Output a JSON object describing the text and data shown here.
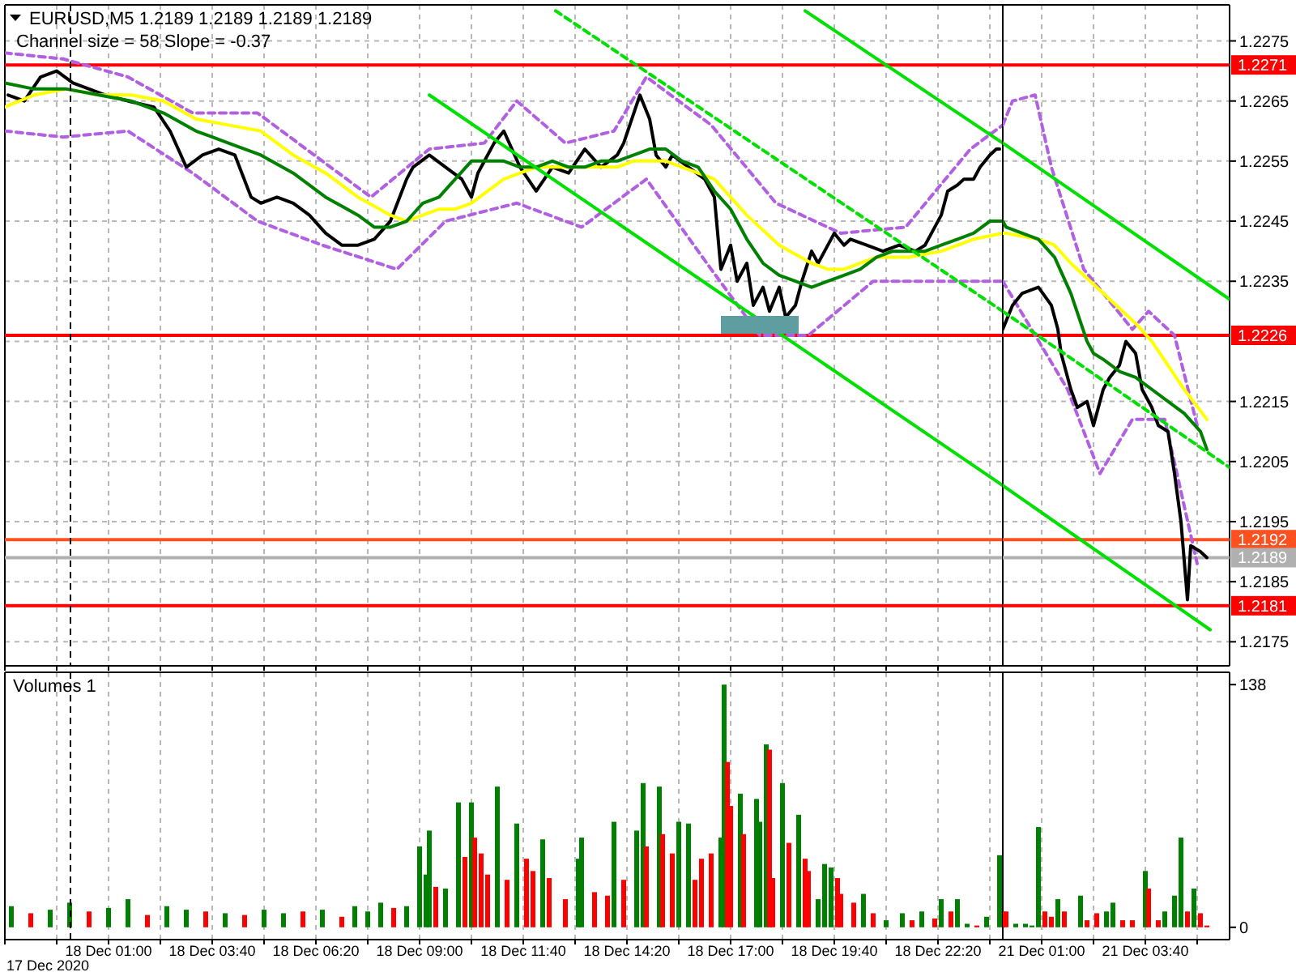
{
  "chart_data": [
    {
      "type": "line",
      "title": "EURUSD,M5 1.2189 1.2189 1.2189 1.2189",
      "subtitle": "Channel size = 58 Slope = -0.37",
      "xlim": [
        "2020-12-17T22:20",
        "2020-12-19T00:00"
      ],
      "xticks": [
        {
          "value": "2020-12-17T22:20",
          "label": null
        },
        {
          "value": "2020-12-17T23:40",
          "label": null
        },
        {
          "value": "2020-12-18T01:00",
          "label": null
        },
        {
          "value": "2020-12-18T02:20",
          "label": null
        },
        {
          "value": "2020-12-18T03:40",
          "label": null
        },
        {
          "value": "2020-12-18T05:00",
          "label": null
        },
        {
          "value": "2020-12-18T06:20",
          "label": null
        },
        {
          "value": "2020-12-18T07:40",
          "label": null
        },
        {
          "value": "2020-12-18T09:00",
          "label": null
        },
        {
          "value": "2020-12-18T10:20",
          "label": null
        },
        {
          "value": "2020-12-18T11:40",
          "label": null
        },
        {
          "value": "2020-12-18T13:00",
          "label": null
        },
        {
          "value": "2020-12-18T14:20",
          "label": null
        },
        {
          "value": "2020-12-18T15:40",
          "label": null
        },
        {
          "value": "2020-12-18T17:00",
          "label": null
        },
        {
          "value": "2020-12-18T18:20",
          "label": null
        },
        {
          "value": "2020-12-18T19:40",
          "label": null
        },
        {
          "value": "2020-12-18T21:00",
          "label": null
        },
        {
          "value": "2020-12-18T22:20",
          "label": null
        },
        {
          "value": "2020-12-18T23:40",
          "label": null
        }
      ],
      "ylim": [
        1.2171,
        1.2281
      ],
      "yticks": [
        {
          "value": 1.2175,
          "label": null
        },
        {
          "value": 1.2185,
          "label": null
        },
        {
          "value": 1.2195,
          "label": null
        },
        {
          "value": 1.2205,
          "label": null
        },
        {
          "value": 1.2215,
          "label": null
        },
        {
          "value": 1.2225,
          "label": null
        },
        {
          "value": 1.2235,
          "label": null
        },
        {
          "value": 1.2245,
          "label": null
        },
        {
          "value": 1.2255,
          "label": null
        },
        {
          "value": 1.2265,
          "label": null
        },
        {
          "value": 1.2275,
          "label": null
        }
      ],
      "grid": true,
      "tick_labels": false,
      "series": [
        {
          "color": "#b060e0",
          "line_style": "dashed",
          "x": [
            "2020-12-17T22:20",
            "2020-12-17T23:50",
            "2020-12-18T01:30",
            "2020-12-18T03:10",
            "2020-12-18T04:50",
            "2020-12-18T06:05",
            "2020-12-18T07:45",
            "2020-12-18T09:15",
            "2020-12-18T10:40",
            "2020-12-18T11:30",
            "2020-12-18T12:45",
            "2020-12-18T14:00",
            "2020-12-18T14:50",
            "2020-12-18T16:30",
            "2020-12-18T18:10",
            "2020-12-18T19:50",
            "2020-12-18T21:30",
            "2020-12-18T23:10",
            "2020-12-19T00:00"
          ],
          "values": [
            1.2273,
            1.2272,
            1.2269,
            1.2263,
            1.2263,
            1.2257,
            1.2249,
            1.2257,
            1.2258,
            1.2265,
            1.2258,
            1.226,
            1.2269,
            1.2261,
            1.2248,
            1.2243,
            1.2244,
            1.2257,
            1.2261
          ]
        },
        {
          "color": "#b060e0",
          "line_style": "dashed",
          "x": [
            "2020-12-17T22:20",
            "2020-12-17T23:50",
            "2020-12-18T01:30",
            "2020-12-18T03:10",
            "2020-12-18T04:50",
            "2020-12-18T06:30",
            "2020-12-18T08:25",
            "2020-12-18T09:40",
            "2020-12-18T11:30",
            "2020-12-18T13:10",
            "2020-12-18T14:50",
            "2020-12-18T16:30",
            "2020-12-18T17:45",
            "2020-12-18T19:00",
            "2020-12-18T20:40",
            "2020-12-18T22:20",
            "2020-12-19T00:00"
          ],
          "values": [
            1.226,
            1.2259,
            1.226,
            1.2253,
            1.2245,
            1.2241,
            1.2237,
            1.2245,
            1.2248,
            1.2244,
            1.2252,
            1.2237,
            1.2226,
            1.2226,
            1.2235,
            1.2235,
            1.2235
          ]
        },
        {
          "color": "#000000",
          "x": [
            "2020-12-17T22:25",
            "2020-12-17T22:50",
            "2020-12-17T23:15",
            "2020-12-17T23:40",
            "2020-12-18T00:05",
            "2020-12-18T00:30",
            "2020-12-18T00:55",
            "2020-12-18T01:30",
            "2020-12-18T02:10",
            "2020-12-18T02:35",
            "2020-12-18T03:00",
            "2020-12-18T03:25",
            "2020-12-18T03:50",
            "2020-12-18T04:15",
            "2020-12-18T04:40",
            "2020-12-18T04:55",
            "2020-12-18T05:20",
            "2020-12-18T05:45",
            "2020-12-18T06:10",
            "2020-12-18T06:35",
            "2020-12-18T07:00",
            "2020-12-18T07:25",
            "2020-12-18T07:50",
            "2020-12-18T08:15",
            "2020-12-18T08:40",
            "2020-12-18T08:50",
            "2020-12-18T09:15",
            "2020-12-18T09:40",
            "2020-12-18T10:05",
            "2020-12-18T10:20",
            "2020-12-18T10:30",
            "2020-12-18T10:55",
            "2020-12-18T11:10",
            "2020-12-18T11:35",
            "2020-12-18T12:00",
            "2020-12-18T12:25",
            "2020-12-18T12:50",
            "2020-12-18T13:15",
            "2020-12-18T13:40",
            "2020-12-18T14:05",
            "2020-12-18T14:15",
            "2020-12-18T14:40",
            "2020-12-18T14:55",
            "2020-12-18T15:05",
            "2020-12-18T15:20",
            "2020-12-18T15:30",
            "2020-12-18T15:55",
            "2020-12-18T16:20",
            "2020-12-18T16:35",
            "2020-12-18T16:45",
            "2020-12-18T17:00",
            "2020-12-18T17:10",
            "2020-12-18T17:25",
            "2020-12-18T17:35",
            "2020-12-18T17:50",
            "2020-12-18T18:00",
            "2020-12-18T18:15",
            "2020-12-18T18:25",
            "2020-12-18T18:40",
            "2020-12-18T18:50",
            "2020-12-18T19:05",
            "2020-12-18T19:15",
            "2020-12-18T19:40",
            "2020-12-18T19:55",
            "2020-12-18T20:05",
            "2020-12-18T20:30",
            "2020-12-18T20:55",
            "2020-12-18T21:20",
            "2020-12-18T21:45",
            "2020-12-18T22:00",
            "2020-12-18T22:10",
            "2020-12-18T22:25",
            "2020-12-18T22:35",
            "2020-12-18T22:50",
            "2020-12-18T23:00",
            "2020-12-18T23:15",
            "2020-12-18T23:25",
            "2020-12-18T23:40",
            "2020-12-18T23:50",
            "2020-12-18T23:55"
          ],
          "values": [
            1.2266,
            1.2265,
            1.2269,
            1.227,
            1.2268,
            1.2267,
            1.2266,
            1.2265,
            1.2264,
            1.226,
            1.2254,
            1.2256,
            1.2257,
            1.2256,
            1.2249,
            1.2248,
            1.2249,
            1.2248,
            1.2246,
            1.2243,
            1.2241,
            1.2241,
            1.2242,
            1.2245,
            1.2252,
            1.2254,
            1.2256,
            1.2254,
            1.2252,
            1.2249,
            1.2253,
            1.2258,
            1.226,
            1.2254,
            1.225,
            1.2254,
            1.2253,
            1.2257,
            1.2254,
            1.2256,
            1.2258,
            1.2266,
            1.2262,
            1.2256,
            1.2254,
            1.2256,
            1.2254,
            1.2252,
            1.2249,
            1.2237,
            1.2241,
            1.2235,
            1.2238,
            1.2231,
            1.2234,
            1.223,
            1.2234,
            1.2229,
            1.2231,
            1.2235,
            1.224,
            1.2238,
            1.2243,
            1.2241,
            1.2242,
            1.2241,
            1.224,
            1.2241,
            1.224,
            1.2241,
            1.2243,
            1.2246,
            1.225,
            1.2251,
            1.2252,
            1.2252,
            1.2254,
            1.2256,
            1.2257,
            1.2257
          ]
        },
        {
          "color": "#ffff00",
          "x": [
            "2020-12-17T22:20",
            "2020-12-17T23:05",
            "2020-12-17T23:55",
            "2020-12-18T00:45",
            "2020-12-18T01:35",
            "2020-12-18T02:25",
            "2020-12-18T03:15",
            "2020-12-18T04:05",
            "2020-12-18T04:55",
            "2020-12-18T05:45",
            "2020-12-18T06:35",
            "2020-12-18T07:25",
            "2020-12-18T08:15",
            "2020-12-18T08:40",
            "2020-12-18T09:05",
            "2020-12-18T09:30",
            "2020-12-18T09:55",
            "2020-12-18T10:20",
            "2020-12-18T10:45",
            "2020-12-18T11:10",
            "2020-12-18T11:35",
            "2020-12-18T12:00",
            "2020-12-18T12:25",
            "2020-12-18T13:15",
            "2020-12-18T14:05",
            "2020-12-18T14:30",
            "2020-12-18T14:55",
            "2020-12-18T15:20",
            "2020-12-18T15:45",
            "2020-12-18T16:35",
            "2020-12-18T17:25",
            "2020-12-18T18:15",
            "2020-12-18T19:05",
            "2020-12-18T19:30",
            "2020-12-18T19:55",
            "2020-12-18T20:20",
            "2020-12-18T20:45",
            "2020-12-18T21:35",
            "2020-12-18T22:25",
            "2020-12-18T23:15",
            "2020-12-19T00:00"
          ],
          "values": [
            1.2264,
            1.2266,
            1.2267,
            1.2266,
            1.2266,
            1.2265,
            1.2262,
            1.2261,
            1.226,
            1.2256,
            1.2253,
            1.2249,
            1.2246,
            1.2245,
            1.2246,
            1.2247,
            1.2247,
            1.2248,
            1.225,
            1.2252,
            1.2253,
            1.2254,
            1.2254,
            1.2254,
            1.2254,
            1.2255,
            1.2255,
            1.2255,
            1.2254,
            1.2252,
            1.2246,
            1.2241,
            1.2238,
            1.2237,
            1.2237,
            1.2238,
            1.2239,
            1.2239,
            1.224,
            1.2242,
            1.2243
          ]
        },
        {
          "color": "#008000",
          "x": [
            "2020-12-17T22:20",
            "2020-12-17T23:05",
            "2020-12-17T23:55",
            "2020-12-18T00:45",
            "2020-12-18T01:35",
            "2020-12-18T02:25",
            "2020-12-18T03:15",
            "2020-12-18T04:05",
            "2020-12-18T04:55",
            "2020-12-18T05:45",
            "2020-12-18T06:35",
            "2020-12-18T07:25",
            "2020-12-18T07:50",
            "2020-12-18T08:15",
            "2020-12-18T08:40",
            "2020-12-18T09:05",
            "2020-12-18T09:30",
            "2020-12-18T09:55",
            "2020-12-18T10:20",
            "2020-12-18T10:45",
            "2020-12-18T11:10",
            "2020-12-18T11:35",
            "2020-12-18T12:00",
            "2020-12-18T12:25",
            "2020-12-18T12:50",
            "2020-12-18T13:15",
            "2020-12-18T13:40",
            "2020-12-18T14:05",
            "2020-12-18T14:55",
            "2020-12-18T15:20",
            "2020-12-18T15:45",
            "2020-12-18T16:10",
            "2020-12-18T16:35",
            "2020-12-18T17:00",
            "2020-12-18T17:25",
            "2020-12-18T17:50",
            "2020-12-18T18:15",
            "2020-12-18T18:40",
            "2020-12-18T19:05",
            "2020-12-18T19:30",
            "2020-12-18T19:55",
            "2020-12-18T20:20",
            "2020-12-18T20:45",
            "2020-12-18T21:10",
            "2020-12-18T21:35",
            "2020-12-18T22:00",
            "2020-12-18T22:25",
            "2020-12-18T22:50",
            "2020-12-18T23:15",
            "2020-12-18T23:40",
            "2020-12-18T23:50",
            "2020-12-19T00:00"
          ],
          "values": [
            1.2268,
            1.2267,
            1.2267,
            1.2266,
            1.2265,
            1.2263,
            1.226,
            1.2258,
            1.2256,
            1.2253,
            1.2249,
            1.2246,
            1.2244,
            1.2244,
            1.2245,
            1.2248,
            1.2249,
            1.2252,
            1.2255,
            1.2255,
            1.2255,
            1.2254,
            1.2254,
            1.2255,
            1.2254,
            1.2254,
            1.2255,
            1.2255,
            1.2257,
            1.2257,
            1.2255,
            1.2254,
            1.225,
            1.2247,
            1.2242,
            1.2238,
            1.2236,
            1.2235,
            1.2234,
            1.2235,
            1.2236,
            1.2237,
            1.2239,
            1.224,
            1.224,
            1.224,
            1.2241,
            1.2242,
            1.2243,
            1.2245,
            1.2245,
            1.2245
          ]
        },
        {
          "color": "#00e000",
          "x": [
            "2020-12-18T18:55",
            "2020-12-19T00:00"
          ],
          "values": [
            1.228,
            1.2258
          ]
        },
        {
          "color": "#00e000",
          "line_style": "dashed",
          "x": [
            "2020-12-18T12:30",
            "2020-12-19T00:00"
          ],
          "values": [
            1.228,
            1.223
          ]
        },
        {
          "color": "#00e000",
          "x": [
            "2020-12-18T09:15",
            "2020-12-19T00:00"
          ],
          "values": [
            1.2266,
            1.2201
          ]
        }
      ],
      "ref_lines": [
        {
          "axis": "y",
          "value": 1.2271,
          "color": "#ff0000"
        },
        {
          "axis": "y",
          "value": 1.2226,
          "color": "#ff0000"
        },
        {
          "axis": "y",
          "value": 1.2181,
          "color": "#ff0000"
        },
        {
          "axis": "y",
          "value": 1.2192,
          "color": "#ff5020"
        },
        {
          "axis": "y",
          "value": 1.2189,
          "color": "#b0b0b0"
        },
        {
          "axis": "x",
          "value": "2020-12-18T00:00",
          "color": "#000000",
          "line_style": "dashed"
        }
      ]
    },
    {
      "type": "line",
      "xlim": [
        "2020-12-21T00:00",
        "2020-12-21T05:50"
      ],
      "xticks": [
        {
          "value": "2020-12-21T01:00",
          "label": null
        },
        {
          "value": "2020-12-21T02:20",
          "label": null
        },
        {
          "value": "2020-12-21T03:40",
          "label": null
        },
        {
          "value": "2020-12-21T05:00",
          "label": null
        }
      ],
      "ylim": [
        1.2171,
        1.2281
      ],
      "yticks": [
        1.2175,
        1.2185,
        1.2195,
        1.2205,
        1.2215,
        1.2235,
        1.2245,
        1.2255,
        1.2265,
        1.2275
      ],
      "grid": true,
      "tick_labels": "y",
      "series": [
        {
          "color": "#b060e0",
          "line_style": "dashed",
          "x": [
            "2020-12-21T00:00",
            "2020-12-21T00:15",
            "2020-12-21T00:50",
            "2020-12-21T01:15",
            "2020-12-21T02:05",
            "2020-12-21T03:20",
            "2020-12-21T03:45",
            "2020-12-21T04:25",
            "2020-12-21T05:00"
          ],
          "values": [
            1.2261,
            1.2265,
            1.2266,
            1.2254,
            1.2237,
            1.2227,
            1.223,
            1.2226,
            1.2211
          ]
        },
        {
          "color": "#b060e0",
          "line_style": "dashed",
          "x": [
            "2020-12-21T00:00",
            "2020-12-21T01:40",
            "2020-12-21T02:30",
            "2020-12-21T03:20",
            "2020-12-21T04:10",
            "2020-12-21T05:00"
          ],
          "values": [
            1.2235,
            1.2217,
            1.2203,
            1.2212,
            1.2212,
            1.2188
          ]
        },
        {
          "color": "#000000",
          "x": [
            "2020-12-21T00:00",
            "2020-12-21T00:15",
            "2020-12-21T00:30",
            "2020-12-21T00:55",
            "2020-12-21T01:15",
            "2020-12-21T01:25",
            "2020-12-21T01:30",
            "2020-12-21T01:45",
            "2020-12-21T01:55",
            "2020-12-21T02:10",
            "2020-12-21T02:20",
            "2020-12-21T02:35",
            "2020-12-21T02:45",
            "2020-12-21T03:00",
            "2020-12-21T03:10",
            "2020-12-21T03:25",
            "2020-12-21T03:35",
            "2020-12-21T03:50",
            "2020-12-21T04:00",
            "2020-12-21T04:15",
            "2020-12-21T04:25",
            "2020-12-21T04:35",
            "2020-12-21T04:45",
            "2020-12-21T04:50",
            "2020-12-21T05:05",
            "2020-12-21T05:15"
          ],
          "values": [
            1.2227,
            1.2231,
            1.2233,
            1.2234,
            1.2231,
            1.2227,
            1.2223,
            1.2217,
            1.2214,
            1.2215,
            1.2211,
            1.2217,
            1.2219,
            1.2221,
            1.2225,
            1.2223,
            1.2217,
            1.2214,
            1.2211,
            1.221,
            1.2203,
            1.2195,
            1.2182,
            1.2191,
            1.219,
            1.2189
          ]
        },
        {
          "color": "#ffff00",
          "x": [
            "2020-12-21T00:00",
            "2020-12-21T00:05",
            "2020-12-21T00:55",
            "2020-12-21T01:20",
            "2020-12-21T01:45",
            "2020-12-21T02:35",
            "2020-12-21T03:25",
            "2020-12-21T03:50",
            "2020-12-21T04:15",
            "2020-12-21T04:40",
            "2020-12-21T05:15"
          ],
          "values": [
            1.2243,
            1.2243,
            1.2242,
            1.2241,
            1.2238,
            1.2233,
            1.2228,
            1.2225,
            1.2221,
            1.2217,
            1.2212
          ]
        },
        {
          "color": "#008000",
          "x": [
            "2020-12-21T00:00",
            "2020-12-21T00:05",
            "2020-12-21T00:30",
            "2020-12-21T00:55",
            "2020-12-21T01:20",
            "2020-12-21T01:45",
            "2020-12-21T02:10",
            "2020-12-21T02:20",
            "2020-12-21T02:35",
            "2020-12-21T03:00",
            "2020-12-21T03:25",
            "2020-12-21T03:50",
            "2020-12-21T04:15",
            "2020-12-21T04:40",
            "2020-12-21T05:05",
            "2020-12-21T05:15"
          ],
          "values": [
            1.2245,
            1.2244,
            1.2243,
            1.2242,
            1.2239,
            1.2233,
            1.2225,
            1.2223,
            1.2222,
            1.222,
            1.2219,
            1.2217,
            1.2215,
            1.2213,
            1.221,
            1.2207
          ]
        },
        {
          "color": "#00e000",
          "x": [
            "2020-12-21T00:00",
            "2020-12-21T05:50"
          ],
          "values": [
            1.2258,
            1.2232
          ]
        },
        {
          "color": "#00e000",
          "line_style": "dashed",
          "x": [
            "2020-12-21T00:00",
            "2020-12-21T05:50"
          ],
          "values": [
            1.223,
            1.2204
          ]
        },
        {
          "color": "#00e000",
          "x": [
            "2020-12-21T00:00",
            "2020-12-21T05:20"
          ],
          "values": [
            1.2201,
            1.2177
          ]
        }
      ],
      "ref_lines": [
        {
          "axis": "y",
          "value": 1.2271,
          "label": "1.2271",
          "color": "#ff0000"
        },
        {
          "axis": "y",
          "value": 1.2226,
          "label": "1.2226",
          "color": "#ff0000"
        },
        {
          "axis": "y",
          "value": 1.2181,
          "label": "1.2181",
          "color": "#ff0000"
        },
        {
          "axis": "y",
          "value": 1.2192,
          "label": "1.2192",
          "color": "#ff5020"
        },
        {
          "axis": "y",
          "value": 1.2189,
          "label": "1.2189",
          "color": "#b0b0b0"
        }
      ]
    },
    {
      "type": "bar",
      "title": "Volumes 1",
      "xlim": [
        "2020-12-17T22:20",
        "2020-12-19T00:00"
      ],
      "annotations": [
        "17 Dec 2020"
      ],
      "xticks": [
        {
          "value": "2020-12-17T22:20",
          "label": null
        },
        {
          "value": "2020-12-17T23:40",
          "label": null
        },
        {
          "value": "2020-12-18T01:00",
          "label": "18 Dec 01:00"
        },
        {
          "value": "2020-12-18T02:20",
          "label": null
        },
        {
          "value": "2020-12-18T03:40",
          "label": "18 Dec 03:40"
        },
        {
          "value": "2020-12-18T05:00",
          "label": null
        },
        {
          "value": "2020-12-18T06:20",
          "label": "18 Dec 06:20"
        },
        {
          "value": "2020-12-18T07:40",
          "label": null
        },
        {
          "value": "2020-12-18T09:00",
          "label": "18 Dec 09:00"
        },
        {
          "value": "2020-12-18T10:20",
          "label": null
        },
        {
          "value": "2020-12-18T11:40",
          "label": "18 Dec 11:40"
        },
        {
          "value": "2020-12-18T13:00",
          "label": null
        },
        {
          "value": "2020-12-18T14:20",
          "label": "18 Dec 14:20"
        },
        {
          "value": "2020-12-18T15:40",
          "label": null
        },
        {
          "value": "2020-12-18T17:00",
          "label": "18 Dec 17:00"
        },
        {
          "value": "2020-12-18T18:20",
          "label": null
        },
        {
          "value": "2020-12-18T19:40",
          "label": "18 Dec 19:40"
        },
        {
          "value": "2020-12-18T21:00",
          "label": null
        },
        {
          "value": "2020-12-18T22:20",
          "label": "18 Dec 22:20"
        },
        {
          "value": "2020-12-18T23:40",
          "label": null
        }
      ],
      "ylim": [
        -7,
        145
      ],
      "grid": "x",
      "tick_labels": "x",
      "x": [
        "2020-12-17T22:30",
        "2020-12-17T23:00",
        "2020-12-17T23:30",
        "2020-12-18T00:00",
        "2020-12-18T00:30",
        "2020-12-18T01:00",
        "2020-12-18T01:30",
        "2020-12-18T02:00",
        "2020-12-18T02:30",
        "2020-12-18T03:00",
        "2020-12-18T03:30",
        "2020-12-18T04:00",
        "2020-12-18T04:30",
        "2020-12-18T05:00",
        "2020-12-18T05:30",
        "2020-12-18T06:00",
        "2020-12-18T06:30",
        "2020-12-18T07:00",
        "2020-12-18T07:20",
        "2020-12-18T07:40",
        "2020-12-18T08:00",
        "2020-12-18T08:20",
        "2020-12-18T08:40",
        "2020-12-18T09:00",
        "2020-12-18T09:10",
        "2020-12-18T09:15",
        "2020-12-18T09:25",
        "2020-12-18T09:40",
        "2020-12-18T10:00",
        "2020-12-18T10:10",
        "2020-12-18T10:20",
        "2020-12-18T10:25",
        "2020-12-18T10:35",
        "2020-12-18T10:45",
        "2020-12-18T11:00",
        "2020-12-18T11:15",
        "2020-12-18T11:30",
        "2020-12-18T11:45",
        "2020-12-18T11:55",
        "2020-12-18T12:10",
        "2020-12-18T12:20",
        "2020-12-18T12:45",
        "2020-12-18T13:05",
        "2020-12-18T13:10",
        "2020-12-18T13:30",
        "2020-12-18T13:50",
        "2020-12-18T14:00",
        "2020-12-18T14:15",
        "2020-12-18T14:35",
        "2020-12-18T14:45",
        "2020-12-18T14:50",
        "2020-12-18T15:10",
        "2020-12-18T15:15",
        "2020-12-18T15:30",
        "2020-12-18T15:40",
        "2020-12-18T15:55",
        "2020-12-18T16:05",
        "2020-12-18T16:15",
        "2020-12-18T16:30",
        "2020-12-18T16:45",
        "2020-12-18T16:50",
        "2020-12-18T16:55",
        "2020-12-18T17:00",
        "2020-12-18T17:15",
        "2020-12-18T17:20",
        "2020-12-18T17:40",
        "2020-12-18T17:45",
        "2020-12-18T17:55",
        "2020-12-18T18:00",
        "2020-12-18T18:05",
        "2020-12-18T18:20",
        "2020-12-18T18:30",
        "2020-12-18T18:45",
        "2020-12-18T18:55",
        "2020-12-18T19:00",
        "2020-12-18T19:15",
        "2020-12-18T19:25",
        "2020-12-18T19:35",
        "2020-12-18T19:45",
        "2020-12-18T19:50",
        "2020-12-18T20:10",
        "2020-12-18T20:25",
        "2020-12-18T20:40",
        "2020-12-18T21:00",
        "2020-12-18T21:25",
        "2020-12-18T21:40",
        "2020-12-18T21:55",
        "2020-12-18T22:15",
        "2020-12-18T22:25",
        "2020-12-18T22:40",
        "2020-12-18T22:50",
        "2020-12-18T23:05",
        "2020-12-18T23:20",
        "2020-12-18T23:35",
        "2020-12-18T23:55"
      ],
      "values": [
        12,
        8,
        10,
        14,
        9,
        11,
        16,
        7,
        12,
        10,
        9,
        8,
        7,
        10,
        8,
        9,
        10,
        6,
        12,
        9,
        14,
        11,
        12,
        46,
        30,
        55,
        23,
        22,
        71,
        40,
        71,
        51,
        42,
        30,
        80,
        27,
        59,
        39,
        32,
        50,
        28,
        16,
        39,
        51,
        20,
        18,
        60,
        27,
        55,
        82,
        46,
        80,
        53,
        42,
        60,
        59,
        27,
        39,
        42,
        51,
        138,
        94,
        69,
        76,
        53,
        73,
        60,
        104,
        101,
        28,
        82,
        48,
        64,
        39,
        32,
        16,
        36,
        34,
        28,
        19,
        14,
        19,
        8,
        4,
        8,
        4,
        9,
        5,
        16,
        9,
        16,
        2,
        1,
        6,
        41
      ],
      "colors": [
        "#008000",
        "#ff0000",
        "#008000",
        "#008000",
        "#ff0000",
        "#008000",
        "#008000",
        "#ff0000",
        "#008000",
        "#008000",
        "#ff0000",
        "#008000",
        "#ff0000",
        "#008000",
        "#008000",
        "#ff0000",
        "#008000",
        "#ff0000",
        "#008000",
        "#008000",
        "#008000",
        "#ff0000",
        "#008000",
        "#008000",
        "#008000",
        "#008000",
        "#ff0000",
        "#008000",
        "#008000",
        "#ff0000",
        "#008000",
        "#ff0000",
        "#ff0000",
        "#ff0000",
        "#008000",
        "#ff0000",
        "#008000",
        "#ff0000",
        "#ff0000",
        "#008000",
        "#ff0000",
        "#ff0000",
        "#008000",
        "#008000",
        "#ff0000",
        "#ff0000",
        "#008000",
        "#ff0000",
        "#008000",
        "#008000",
        "#ff0000",
        "#008000",
        "#ff0000",
        "#ff0000",
        "#008000",
        "#008000",
        "#ff0000",
        "#ff0000",
        "#ff0000",
        "#008000",
        "#008000",
        "#ff0000",
        "#ff0000",
        "#008000",
        "#ff0000",
        "#008000",
        "#008000",
        "#008000",
        "#ff0000",
        "#ff0000",
        "#008000",
        "#ff0000",
        "#008000",
        "#ff0000",
        "#ff0000",
        "#008000",
        "#008000",
        "#008000",
        "#ff0000",
        "#ff0000",
        "#ff0000",
        "#008000",
        "#ff0000",
        "#008000",
        "#008000",
        "#ff0000",
        "#008000",
        "#ff0000",
        "#008000",
        "#ff0000",
        "#008000",
        "#008000",
        "#ff0000",
        "#008000",
        "#008000"
      ],
      "ref_lines": [
        {
          "axis": "x",
          "value": "2020-12-18T00:00",
          "color": "#000000",
          "line_style": "dashed"
        }
      ]
    },
    {
      "type": "bar",
      "xlim": [
        "2020-12-21T00:00",
        "2020-12-21T05:50"
      ],
      "xticks": [
        {
          "value": "2020-12-21T01:00",
          "label": "21 Dec 01:00"
        },
        {
          "value": "2020-12-21T02:20",
          "label": null
        },
        {
          "value": "2020-12-21T03:40",
          "label": "21 Dec 03:40"
        },
        {
          "value": "2020-12-21T05:00",
          "label": null
        }
      ],
      "ylim": [
        -7,
        145
      ],
      "yticks": [
        0,
        138
      ],
      "grid": "x",
      "x": [
        "2020-12-21T00:00",
        "2020-12-21T00:05",
        "2020-12-21T00:20",
        "2020-12-21T00:35",
        "2020-12-21T00:45",
        "2020-12-21T00:55",
        "2020-12-21T01:05",
        "2020-12-21T01:15",
        "2020-12-21T01:25",
        "2020-12-21T01:35",
        "2020-12-21T02:00",
        "2020-12-21T02:10",
        "2020-12-21T02:25",
        "2020-12-21T02:40",
        "2020-12-21T02:50",
        "2020-12-21T03:05",
        "2020-12-21T03:20",
        "2020-12-21T03:40",
        "2020-12-21T03:45",
        "2020-12-21T04:00",
        "2020-12-21T04:10",
        "2020-12-21T04:25",
        "2020-12-21T04:35",
        "2020-12-21T04:45",
        "2020-12-21T04:55",
        "2020-12-21T05:05",
        "2020-12-21T05:15"
      ],
      "values": [
        9,
        9,
        2,
        2,
        1,
        57,
        9,
        6,
        16,
        9,
        18,
        4,
        8,
        9,
        14,
        4,
        4,
        32,
        22,
        4,
        9,
        18,
        51,
        9,
        22,
        8,
        1
      ],
      "colors": [
        "#ff0000",
        "#ff0000",
        "#008000",
        "#008000",
        "#008000",
        "#008000",
        "#ff0000",
        "#ff0000",
        "#008000",
        "#ff0000",
        "#008000",
        "#ff0000",
        "#ff0000",
        "#008000",
        "#008000",
        "#ff0000",
        "#ff0000",
        "#008000",
        "#ff0000",
        "#ff0000",
        "#008000",
        "#008000",
        "#008000",
        "#ff0000",
        "#008000",
        "#ff0000",
        "#ff0000"
      ]
    }
  ]
}
